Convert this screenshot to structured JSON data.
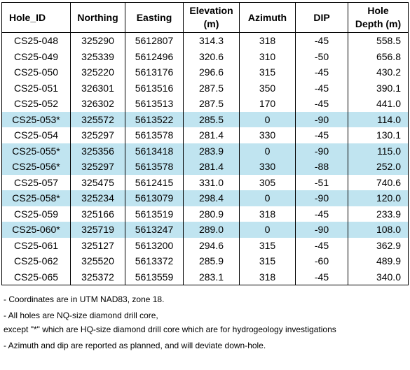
{
  "table": {
    "headers": {
      "hole_id": "Hole_ID",
      "northing": "Northing",
      "easting": "Easting",
      "elevation_line1": "Elevation",
      "elevation_line2": "(m)",
      "azimuth": "Azimuth",
      "dip": "DIP",
      "depth_line1": "Hole",
      "depth_line2": "Depth (m)"
    },
    "highlight_color": "#c0e4f0",
    "rows": [
      {
        "hole_id": "CS25-048",
        "northing": "325290",
        "easting": "5612807",
        "elevation": "314.3",
        "azimuth": "318",
        "dip": "-45",
        "depth": "558.5",
        "highlighted": false
      },
      {
        "hole_id": "CS25-049",
        "northing": "325339",
        "easting": "5612496",
        "elevation": "320.6",
        "azimuth": "310",
        "dip": "-50",
        "depth": "656.8",
        "highlighted": false
      },
      {
        "hole_id": "CS25-050",
        "northing": "325220",
        "easting": "5613176",
        "elevation": "296.6",
        "azimuth": "315",
        "dip": "-45",
        "depth": "430.2",
        "highlighted": false
      },
      {
        "hole_id": "CS25-051",
        "northing": "326301",
        "easting": "5613516",
        "elevation": "287.5",
        "azimuth": "350",
        "dip": "-45",
        "depth": "390.1",
        "highlighted": false
      },
      {
        "hole_id": "CS25-052",
        "northing": "326302",
        "easting": "5613513",
        "elevation": "287.5",
        "azimuth": "170",
        "dip": "-45",
        "depth": "441.0",
        "highlighted": false
      },
      {
        "hole_id": "CS25-053*",
        "northing": "325572",
        "easting": "5613522",
        "elevation": "285.5",
        "azimuth": "0",
        "dip": "-90",
        "depth": "114.0",
        "highlighted": true
      },
      {
        "hole_id": "CS25-054",
        "northing": "325297",
        "easting": "5613578",
        "elevation": "281.4",
        "azimuth": "330",
        "dip": "-45",
        "depth": "130.1",
        "highlighted": false
      },
      {
        "hole_id": "CS25-055*",
        "northing": "325356",
        "easting": "5613418",
        "elevation": "283.9",
        "azimuth": "0",
        "dip": "-90",
        "depth": "115.0",
        "highlighted": true
      },
      {
        "hole_id": "CS25-056*",
        "northing": "325297",
        "easting": "5613578",
        "elevation": "281.4",
        "azimuth": "330",
        "dip": "-88",
        "depth": "252.0",
        "highlighted": true
      },
      {
        "hole_id": "CS25-057",
        "northing": "325475",
        "easting": "5612415",
        "elevation": "331.0",
        "azimuth": "305",
        "dip": "-51",
        "depth": "740.6",
        "highlighted": false
      },
      {
        "hole_id": "CS25-058*",
        "northing": "325234",
        "easting": "5613079",
        "elevation": "298.4",
        "azimuth": "0",
        "dip": "-90",
        "depth": "120.0",
        "highlighted": true
      },
      {
        "hole_id": "CS25-059",
        "northing": "325166",
        "easting": "5613519",
        "elevation": "280.9",
        "azimuth": "318",
        "dip": "-45",
        "depth": "233.9",
        "highlighted": false
      },
      {
        "hole_id": "CS25-060*",
        "northing": "325719",
        "easting": "5613247",
        "elevation": "289.0",
        "azimuth": "0",
        "dip": "-90",
        "depth": "108.0",
        "highlighted": true
      },
      {
        "hole_id": "CS25-061",
        "northing": "325127",
        "easting": "5613200",
        "elevation": "294.6",
        "azimuth": "315",
        "dip": "-45",
        "depth": "362.9",
        "highlighted": false
      },
      {
        "hole_id": "CS25-062",
        "northing": "325520",
        "easting": "5613372",
        "elevation": "285.9",
        "azimuth": "315",
        "dip": "-60",
        "depth": "489.9",
        "highlighted": false
      },
      {
        "hole_id": "CS25-065",
        "northing": "325372",
        "easting": "5613559",
        "elevation": "283.1",
        "azimuth": "318",
        "dip": "-45",
        "depth": "340.0",
        "highlighted": false
      }
    ]
  },
  "notes": {
    "coordinates": "- Coordinates are in UTM NAD83, zone 18.",
    "core_size_line1": "- All holes are NQ-size diamond drill core,",
    "core_size_line2": "except \"*\" which are HQ-size diamond drill core which are for hydrogeology investigations",
    "azimuth_dip": "- Azimuth and dip are reported as planned, and will deviate down-hole."
  }
}
